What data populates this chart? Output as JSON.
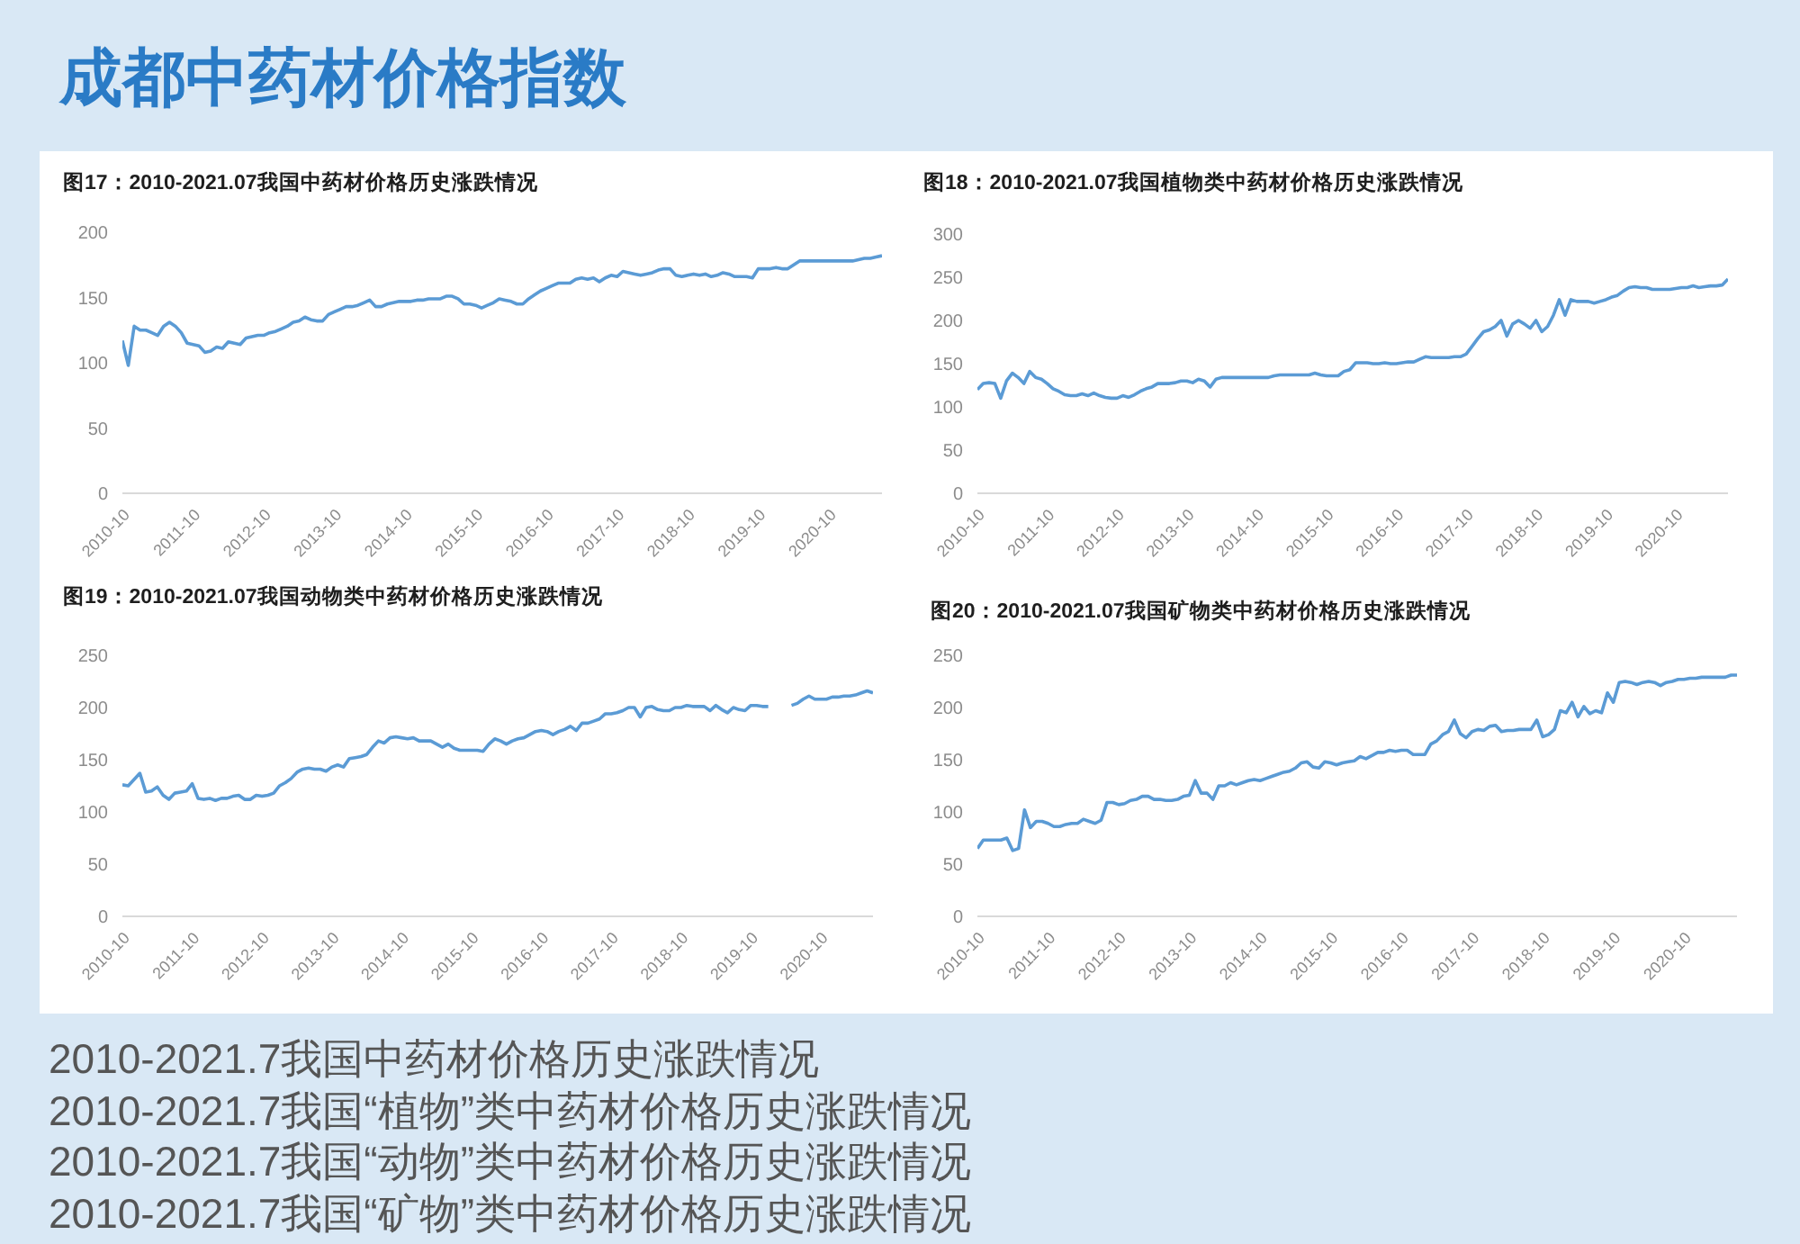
{
  "chart_data": [
    {
      "type": "other",
      "title": "成都中药材价格指数"
    },
    {
      "type": "line",
      "title": "图17：2010-2021.07我国中药材价格历史涨跌情况",
      "color": "#5b9bd5",
      "x": [
        "2010-10",
        "2010-11",
        "2010-12",
        "2011-01",
        "2011-02",
        "2011-03",
        "2011-04",
        "2011-05",
        "2011-06",
        "2011-07",
        "2011-08",
        "2011-09",
        "2011-10",
        "2011-11",
        "2011-12",
        "2012-01",
        "2012-02",
        "2012-03",
        "2012-04",
        "2012-05",
        "2012-06",
        "2012-07",
        "2012-08",
        "2012-09",
        "2012-10",
        "2012-11",
        "2012-12",
        "2013-01",
        "2013-02",
        "2013-03",
        "2013-04",
        "2013-05",
        "2013-06",
        "2013-07",
        "2013-08",
        "2013-09",
        "2013-10",
        "2013-11",
        "2013-12",
        "2014-01",
        "2014-02",
        "2014-03",
        "2014-04",
        "2014-05",
        "2014-06",
        "2014-07",
        "2014-08",
        "2014-09",
        "2014-10",
        "2014-11",
        "2014-12",
        "2015-01",
        "2015-02",
        "2015-03",
        "2015-04",
        "2015-05",
        "2015-06",
        "2015-07",
        "2015-08",
        "2015-09",
        "2015-10",
        "2015-11",
        "2015-12",
        "2016-01",
        "2016-02",
        "2016-03",
        "2016-04",
        "2016-05",
        "2016-06",
        "2016-07",
        "2016-08",
        "2016-09",
        "2016-10",
        "2016-11",
        "2016-12",
        "2017-01",
        "2017-02",
        "2017-03",
        "2017-04",
        "2017-05",
        "2017-06",
        "2017-07",
        "2017-08",
        "2017-09",
        "2017-10",
        "2017-11",
        "2017-12",
        "2018-01",
        "2018-02",
        "2018-03",
        "2018-04",
        "2018-05",
        "2018-06",
        "2018-07",
        "2018-08",
        "2018-09",
        "2018-10",
        "2018-11",
        "2018-12",
        "2019-01",
        "2019-02",
        "2019-03",
        "2019-04",
        "2019-05",
        "2019-06",
        "2019-07",
        "2019-08",
        "2019-09",
        "2019-10",
        "2019-11",
        "2019-12",
        "2020-01",
        "2020-02",
        "2020-03",
        "2020-04",
        "2020-05",
        "2020-06",
        "2020-07",
        "2020-08",
        "2020-09",
        "2020-10",
        "2020-11",
        "2020-12",
        "2021-01",
        "2021-02",
        "2021-03",
        "2021-04",
        "2021-05",
        "2021-06",
        "2021-07"
      ],
      "values": [
        117,
        98,
        128,
        125,
        125,
        123,
        121,
        128,
        131,
        128,
        123,
        115,
        114,
        113,
        108,
        109,
        112,
        111,
        116,
        115,
        114,
        119,
        120,
        121,
        121,
        123,
        124,
        126,
        128,
        131,
        132,
        135,
        133,
        132,
        132,
        137,
        139,
        141,
        143,
        143,
        144,
        146,
        148,
        143,
        143,
        145,
        146,
        147,
        147,
        147,
        148,
        148,
        149,
        149,
        149,
        151,
        151,
        149,
        145,
        145,
        144,
        142,
        144,
        146,
        149,
        148,
        147,
        145,
        145,
        149,
        152,
        155,
        157,
        159,
        161,
        161,
        161,
        164,
        165,
        164,
        165,
        162,
        165,
        167,
        166,
        170,
        169,
        168,
        167,
        168,
        169,
        171,
        172,
        172,
        167,
        166,
        167,
        168,
        167,
        168,
        166,
        167,
        169,
        168,
        166,
        166,
        166,
        165,
        172,
        172,
        172,
        173,
        172,
        172,
        175,
        178,
        178,
        178,
        178,
        178,
        178,
        178,
        178,
        178,
        178,
        179,
        180,
        180,
        181,
        182
      ],
      "xlim": [
        "2010-10",
        "2021-07"
      ],
      "xticks": [
        "2010-10",
        "2011-10",
        "2012-10",
        "2013-10",
        "2014-10",
        "2015-10",
        "2016-10",
        "2017-10",
        "2018-10",
        "2019-10",
        "2020-10"
      ],
      "ylim": [
        0,
        200
      ],
      "yticks": [
        0,
        50,
        100,
        150,
        200
      ]
    },
    {
      "type": "line",
      "title": "图18：2010-2021.07我国植物类中药材价格历史涨跌情况",
      "color": "#5b9bd5",
      "x": [
        "2010-10",
        "2010-11",
        "2010-12",
        "2011-01",
        "2011-02",
        "2011-03",
        "2011-04",
        "2011-05",
        "2011-06",
        "2011-07",
        "2011-08",
        "2011-09",
        "2011-10",
        "2011-11",
        "2011-12",
        "2012-01",
        "2012-02",
        "2012-03",
        "2012-04",
        "2012-05",
        "2012-06",
        "2012-07",
        "2012-08",
        "2012-09",
        "2012-10",
        "2012-11",
        "2012-12",
        "2013-01",
        "2013-02",
        "2013-03",
        "2013-04",
        "2013-05",
        "2013-06",
        "2013-07",
        "2013-08",
        "2013-09",
        "2013-10",
        "2013-11",
        "2013-12",
        "2014-01",
        "2014-02",
        "2014-03",
        "2014-04",
        "2014-05",
        "2014-06",
        "2014-07",
        "2014-08",
        "2014-09",
        "2014-10",
        "2014-11",
        "2014-12",
        "2015-01",
        "2015-02",
        "2015-03",
        "2015-04",
        "2015-05",
        "2015-06",
        "2015-07",
        "2015-08",
        "2015-09",
        "2015-10",
        "2015-11",
        "2015-12",
        "2016-01",
        "2016-02",
        "2016-03",
        "2016-04",
        "2016-05",
        "2016-06",
        "2016-07",
        "2016-08",
        "2016-09",
        "2016-10",
        "2016-11",
        "2016-12",
        "2017-01",
        "2017-02",
        "2017-03",
        "2017-04",
        "2017-05",
        "2017-06",
        "2017-07",
        "2017-08",
        "2017-09",
        "2017-10",
        "2017-11",
        "2017-12",
        "2018-01",
        "2018-02",
        "2018-03",
        "2018-04",
        "2018-05",
        "2018-06",
        "2018-07",
        "2018-08",
        "2018-09",
        "2018-10",
        "2018-11",
        "2018-12",
        "2019-01",
        "2019-02",
        "2019-03",
        "2019-04",
        "2019-05",
        "2019-06",
        "2019-07",
        "2019-08",
        "2019-09",
        "2019-10",
        "2019-11",
        "2019-12",
        "2020-01",
        "2020-02",
        "2020-03",
        "2020-04",
        "2020-05",
        "2020-06",
        "2020-07",
        "2020-08",
        "2020-09",
        "2020-10",
        "2020-11",
        "2020-12",
        "2021-01",
        "2021-02",
        "2021-03",
        "2021-04",
        "2021-05",
        "2021-06",
        "2021-07"
      ],
      "values": [
        120,
        127,
        128,
        127,
        110,
        130,
        139,
        134,
        127,
        141,
        134,
        132,
        127,
        121,
        118,
        114,
        113,
        113,
        115,
        113,
        116,
        113,
        111,
        110,
        110,
        113,
        111,
        114,
        118,
        121,
        123,
        127,
        127,
        127,
        128,
        130,
        130,
        128,
        132,
        130,
        123,
        132,
        134,
        134,
        134,
        134,
        134,
        134,
        134,
        134,
        134,
        136,
        137,
        137,
        137,
        137,
        137,
        137,
        139,
        137,
        136,
        136,
        136,
        141,
        143,
        151,
        151,
        151,
        150,
        150,
        151,
        150,
        150,
        151,
        152,
        152,
        155,
        158,
        157,
        157,
        157,
        157,
        158,
        158,
        161,
        170,
        179,
        187,
        189,
        193,
        200,
        182,
        196,
        200,
        196,
        191,
        200,
        187,
        193,
        206,
        224,
        206,
        224,
        222,
        222,
        222,
        220,
        222,
        224,
        227,
        229,
        234,
        238,
        239,
        238,
        238,
        236,
        236,
        236,
        236,
        237,
        238,
        238,
        240,
        238,
        239,
        240,
        240,
        241,
        248
      ],
      "xlim": [
        "2010-10",
        "2021-07"
      ],
      "xticks": [
        "2010-10",
        "2011-10",
        "2012-10",
        "2013-10",
        "2014-10",
        "2015-10",
        "2016-10",
        "2017-10",
        "2018-10",
        "2019-10",
        "2020-10"
      ],
      "ylim": [
        0,
        300
      ],
      "yticks": [
        0,
        50,
        100,
        150,
        200,
        250,
        300
      ]
    },
    {
      "type": "line",
      "title": "图19：2010-2021.07我国动物类中药材价格历史涨跌情况",
      "color": "#5b9bd5",
      "x": [
        "2010-10",
        "2010-11",
        "2010-12",
        "2011-01",
        "2011-02",
        "2011-03",
        "2011-04",
        "2011-05",
        "2011-06",
        "2011-07",
        "2011-08",
        "2011-09",
        "2011-10",
        "2011-11",
        "2011-12",
        "2012-01",
        "2012-02",
        "2012-03",
        "2012-04",
        "2012-05",
        "2012-06",
        "2012-07",
        "2012-08",
        "2012-09",
        "2012-10",
        "2012-11",
        "2012-12",
        "2013-01",
        "2013-02",
        "2013-03",
        "2013-04",
        "2013-05",
        "2013-06",
        "2013-07",
        "2013-08",
        "2013-09",
        "2013-10",
        "2013-11",
        "2013-12",
        "2014-01",
        "2014-02",
        "2014-03",
        "2014-04",
        "2014-05",
        "2014-06",
        "2014-07",
        "2014-08",
        "2014-09",
        "2014-10",
        "2014-11",
        "2014-12",
        "2015-01",
        "2015-02",
        "2015-03",
        "2015-04",
        "2015-05",
        "2015-06",
        "2015-07",
        "2015-08",
        "2015-09",
        "2015-10",
        "2015-11",
        "2015-12",
        "2016-01",
        "2016-02",
        "2016-03",
        "2016-04",
        "2016-05",
        "2016-06",
        "2016-07",
        "2016-08",
        "2016-09",
        "2016-10",
        "2016-11",
        "2016-12",
        "2017-01",
        "2017-02",
        "2017-03",
        "2017-04",
        "2017-05",
        "2017-06",
        "2017-07",
        "2017-08",
        "2017-09",
        "2017-10",
        "2017-11",
        "2017-12",
        "2018-01",
        "2018-02",
        "2018-03",
        "2018-04",
        "2018-05",
        "2018-06",
        "2018-07",
        "2018-08",
        "2018-09",
        "2018-10",
        "2018-11",
        "2018-12",
        "2019-01",
        "2019-02",
        "2019-03",
        "2019-04",
        "2019-05",
        "2019-06",
        "2019-07",
        "2019-08",
        "2019-09",
        "2019-10",
        "2019-11",
        "2019-12",
        "2020-01",
        "2020-02",
        "2020-03",
        "2020-04",
        "2020-05",
        "2020-06",
        "2020-07",
        "2020-08",
        "2020-09",
        "2020-10",
        "2020-11",
        "2020-12",
        "2021-01",
        "2021-02",
        "2021-03",
        "2021-04",
        "2021-05",
        "2021-06",
        "2021-07"
      ],
      "values": [
        126,
        125,
        131,
        137,
        119,
        120,
        124,
        116,
        112,
        118,
        119,
        120,
        127,
        113,
        112,
        113,
        111,
        113,
        113,
        115,
        116,
        112,
        112,
        116,
        115,
        116,
        118,
        125,
        128,
        132,
        138,
        141,
        142,
        141,
        141,
        139,
        143,
        145,
        143,
        151,
        152,
        153,
        155,
        162,
        168,
        166,
        171,
        172,
        171,
        170,
        171,
        168,
        168,
        168,
        165,
        162,
        165,
        161,
        159,
        159,
        159,
        159,
        158,
        165,
        170,
        168,
        165,
        168,
        170,
        171,
        174,
        177,
        178,
        177,
        174,
        177,
        179,
        182,
        178,
        185,
        185,
        187,
        189,
        194,
        194,
        195,
        197,
        200,
        200,
        191,
        200,
        201,
        198,
        197,
        197,
        200,
        200,
        202,
        201,
        201,
        201,
        197,
        202,
        198,
        195,
        200,
        198,
        197,
        202,
        202,
        201,
        201,
        null,
        null,
        null,
        202,
        204,
        208,
        211,
        208,
        208,
        208,
        210,
        210,
        211,
        211,
        212,
        214,
        216,
        214
      ],
      "xlim": [
        "2010-10",
        "2021-07"
      ],
      "xticks": [
        "2010-10",
        "2011-10",
        "2012-10",
        "2013-10",
        "2014-10",
        "2015-10",
        "2016-10",
        "2017-10",
        "2018-10",
        "2019-10",
        "2020-10"
      ],
      "ylim": [
        0,
        250
      ],
      "yticks": [
        0,
        50,
        100,
        150,
        200,
        250
      ]
    },
    {
      "type": "line",
      "title": "图20：2010-2021.07我国矿物类中药材价格历史涨跌情况",
      "color": "#5b9bd5",
      "x": [
        "2010-10",
        "2010-11",
        "2010-12",
        "2011-01",
        "2011-02",
        "2011-03",
        "2011-04",
        "2011-05",
        "2011-06",
        "2011-07",
        "2011-08",
        "2011-09",
        "2011-10",
        "2011-11",
        "2011-12",
        "2012-01",
        "2012-02",
        "2012-03",
        "2012-04",
        "2012-05",
        "2012-06",
        "2012-07",
        "2012-08",
        "2012-09",
        "2012-10",
        "2012-11",
        "2012-12",
        "2013-01",
        "2013-02",
        "2013-03",
        "2013-04",
        "2013-05",
        "2013-06",
        "2013-07",
        "2013-08",
        "2013-09",
        "2013-10",
        "2013-11",
        "2013-12",
        "2014-01",
        "2014-02",
        "2014-03",
        "2014-04",
        "2014-05",
        "2014-06",
        "2014-07",
        "2014-08",
        "2014-09",
        "2014-10",
        "2014-11",
        "2014-12",
        "2015-01",
        "2015-02",
        "2015-03",
        "2015-04",
        "2015-05",
        "2015-06",
        "2015-07",
        "2015-08",
        "2015-09",
        "2015-10",
        "2015-11",
        "2015-12",
        "2016-01",
        "2016-02",
        "2016-03",
        "2016-04",
        "2016-05",
        "2016-06",
        "2016-07",
        "2016-08",
        "2016-09",
        "2016-10",
        "2016-11",
        "2016-12",
        "2017-01",
        "2017-02",
        "2017-03",
        "2017-04",
        "2017-05",
        "2017-06",
        "2017-07",
        "2017-08",
        "2017-09",
        "2017-10",
        "2017-11",
        "2017-12",
        "2018-01",
        "2018-02",
        "2018-03",
        "2018-04",
        "2018-05",
        "2018-06",
        "2018-07",
        "2018-08",
        "2018-09",
        "2018-10",
        "2018-11",
        "2018-12",
        "2019-01",
        "2019-02",
        "2019-03",
        "2019-04",
        "2019-05",
        "2019-06",
        "2019-07",
        "2019-08",
        "2019-09",
        "2019-10",
        "2019-11",
        "2019-12",
        "2020-01",
        "2020-02",
        "2020-03",
        "2020-04",
        "2020-05",
        "2020-06",
        "2020-07",
        "2020-08",
        "2020-09",
        "2020-10",
        "2020-11",
        "2020-12",
        "2021-01",
        "2021-02",
        "2021-03",
        "2021-04",
        "2021-05",
        "2021-06",
        "2021-07"
      ],
      "values": [
        65,
        73,
        73,
        73,
        73,
        75,
        63,
        65,
        102,
        85,
        91,
        91,
        89,
        86,
        86,
        88,
        89,
        89,
        93,
        91,
        89,
        92,
        109,
        109,
        107,
        108,
        111,
        112,
        115,
        115,
        112,
        112,
        111,
        111,
        112,
        115,
        116,
        130,
        118,
        118,
        112,
        125,
        125,
        128,
        126,
        128,
        130,
        131,
        130,
        132,
        134,
        136,
        138,
        139,
        142,
        147,
        148,
        143,
        142,
        148,
        147,
        145,
        147,
        148,
        149,
        153,
        151,
        154,
        157,
        157,
        159,
        158,
        159,
        159,
        155,
        155,
        155,
        165,
        168,
        174,
        177,
        188,
        175,
        171,
        177,
        179,
        178,
        182,
        183,
        177,
        178,
        178,
        179,
        179,
        179,
        188,
        172,
        174,
        179,
        197,
        195,
        205,
        191,
        201,
        194,
        197,
        195,
        214,
        205,
        224,
        225,
        224,
        222,
        224,
        225,
        224,
        221,
        224,
        225,
        227,
        227,
        228,
        228,
        229,
        229,
        229,
        229,
        229,
        231,
        231
      ],
      "xlim": [
        "2010-10",
        "2021-07"
      ],
      "xticks": [
        "2010-10",
        "2011-10",
        "2012-10",
        "2013-10",
        "2014-10",
        "2015-10",
        "2016-10",
        "2017-10",
        "2018-10",
        "2019-10",
        "2020-10"
      ],
      "ylim": [
        0,
        250
      ],
      "yticks": [
        0,
        50,
        100,
        150,
        200,
        250
      ]
    },
    {
      "type": "other",
      "annotations": [
        "2010-2021.7我国中药材价格历史涨跌情况",
        "2010-2021.7我国“植物”类中药材价格历史涨跌情况",
        "2010-2021.7我国“动物”类中药材价格历史涨跌情况",
        "2010-2021.7我国“矿物”类中药材价格历史涨跌情况"
      ]
    }
  ]
}
